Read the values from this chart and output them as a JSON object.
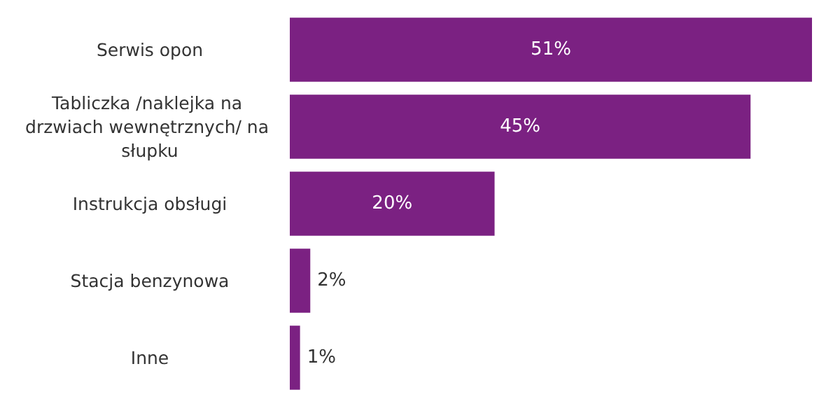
{
  "chart_data": {
    "type": "bar",
    "orientation": "horizontal",
    "categories": [
      "Serwis opon",
      "Tabliczka /naklejka na drzwiach wewnętrznych/ na słupku",
      "Instrukcja obsługi",
      "Stacja benzynowa",
      "Inne"
    ],
    "values": [
      51,
      45,
      20,
      2,
      1
    ],
    "value_labels": [
      "51%",
      "45%",
      "20%",
      "2%",
      "1%"
    ],
    "color": "#7b2182"
  }
}
